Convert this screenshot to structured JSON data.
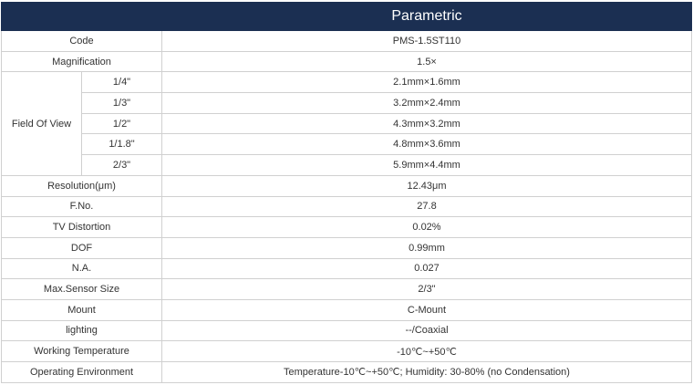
{
  "header": {
    "title": "Parametric",
    "color": "#1b2f52"
  },
  "rows": [
    {
      "label": "Code",
      "value": "PMS-1.5ST110"
    },
    {
      "label": "Magnification",
      "value": "1.5×"
    }
  ],
  "fov": {
    "label": "Field Of View",
    "items": [
      {
        "sensor": "1/4\"",
        "value": "2.1mm×1.6mm"
      },
      {
        "sensor": "1/3\"",
        "value": "3.2mm×2.4mm"
      },
      {
        "sensor": "1/2\"",
        "value": "4.3mm×3.2mm"
      },
      {
        "sensor": "1/1.8\"",
        "value": "4.8mm×3.6mm"
      },
      {
        "sensor": "2/3\"",
        "value": "5.9mm×4.4mm"
      }
    ]
  },
  "rows2": [
    {
      "label": "Resolution(μm)",
      "value": "12.43μm"
    },
    {
      "label": "F.No.",
      "value": "27.8"
    },
    {
      "label": "TV Distortion",
      "value": "0.02%"
    },
    {
      "label": "DOF",
      "value": "0.99mm"
    },
    {
      "label": "N.A.",
      "value": "0.027"
    },
    {
      "label": "Max.Sensor Size",
      "value": "2/3\""
    },
    {
      "label": "Mount",
      "value": "C-Mount"
    },
    {
      "label": "lighting",
      "value": "--/Coaxial"
    },
    {
      "label": "Working Temperature",
      "value": "-10℃~+50℃"
    },
    {
      "label": "Operating Environment",
      "value": "Temperature-10℃~+50℃;  Humidity: 30-80% (no Condensation)"
    }
  ]
}
